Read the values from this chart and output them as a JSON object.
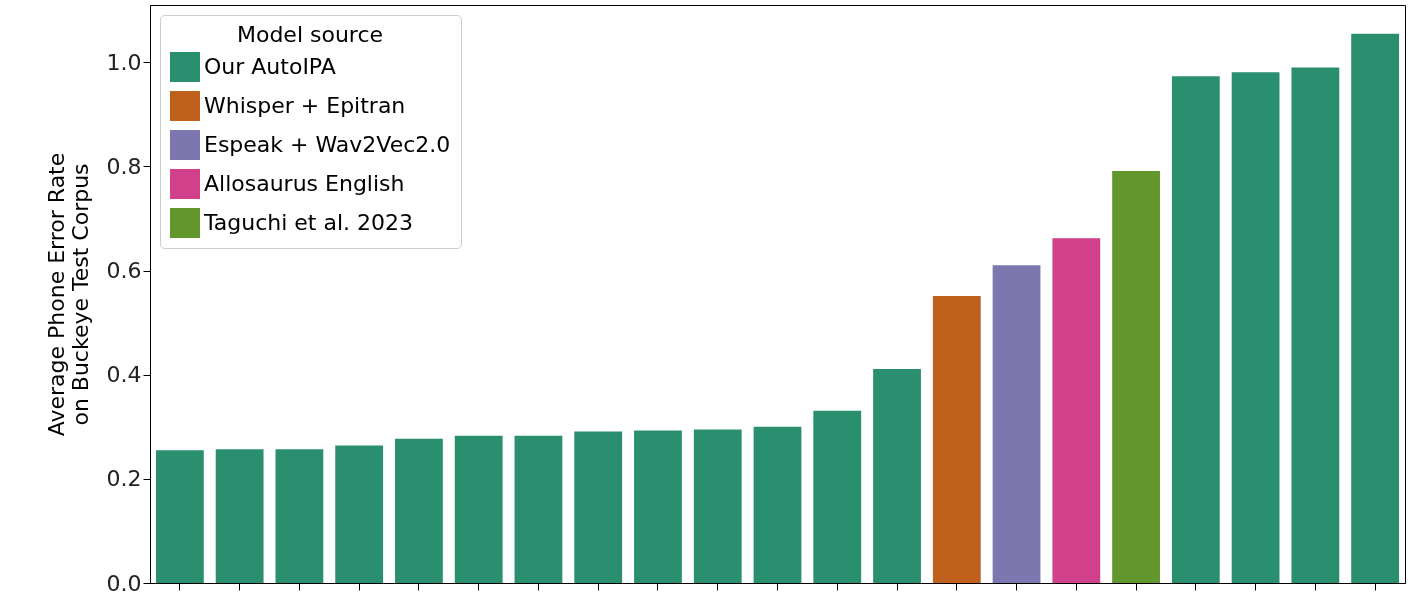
{
  "chart_data": {
    "type": "bar",
    "ylabel": "Average Phone Error Rate\non Buckeye Test Corpus",
    "legend_title": "Model source",
    "categories": [
      null,
      null,
      null,
      null,
      null,
      null,
      null,
      null,
      null,
      null,
      null,
      null,
      null,
      null,
      null,
      null,
      null,
      null,
      null,
      null,
      null
    ],
    "series": [
      {
        "name": "Our AutoIPA",
        "color": "#2a8f6f",
        "values": [
          0.255,
          0.257,
          0.257,
          0.264,
          0.277,
          0.283,
          0.283,
          0.291,
          0.293,
          0.295,
          0.3,
          0.331,
          0.411,
          null,
          null,
          null,
          null,
          0.973,
          0.981,
          0.99,
          1.055
        ]
      },
      {
        "name": "Whisper + Epitran",
        "color": "#c0601d",
        "values": [
          null,
          null,
          null,
          null,
          null,
          null,
          null,
          null,
          null,
          null,
          null,
          null,
          null,
          0.551,
          null,
          null,
          null,
          null,
          null,
          null,
          null
        ]
      },
      {
        "name": "Espeak + Wav2Vec2.0",
        "color": "#7c77ae",
        "values": [
          null,
          null,
          null,
          null,
          null,
          null,
          null,
          null,
          null,
          null,
          null,
          null,
          null,
          null,
          0.61,
          null,
          null,
          null,
          null,
          null,
          null
        ]
      },
      {
        "name": "Allosaurus English",
        "color": "#d0408b",
        "values": [
          null,
          null,
          null,
          null,
          null,
          null,
          null,
          null,
          null,
          null,
          null,
          null,
          null,
          null,
          null,
          0.662,
          null,
          null,
          null,
          null,
          null
        ]
      },
      {
        "name": "Taguchi et al. 2023",
        "color": "#62972e",
        "values": [
          null,
          null,
          null,
          null,
          null,
          null,
          null,
          null,
          null,
          null,
          null,
          null,
          null,
          null,
          null,
          null,
          0.791,
          null,
          null,
          null,
          null
        ]
      }
    ],
    "ylim": [
      0,
      1.11
    ],
    "yticks": [
      {
        "value": 0,
        "label": "0.0"
      },
      0.2,
      0.4,
      0.6,
      0.8,
      {
        "value": 1,
        "label": "1.0"
      }
    ],
    "grid": false,
    "legend": "top left",
    "tick_labels": "y"
  }
}
